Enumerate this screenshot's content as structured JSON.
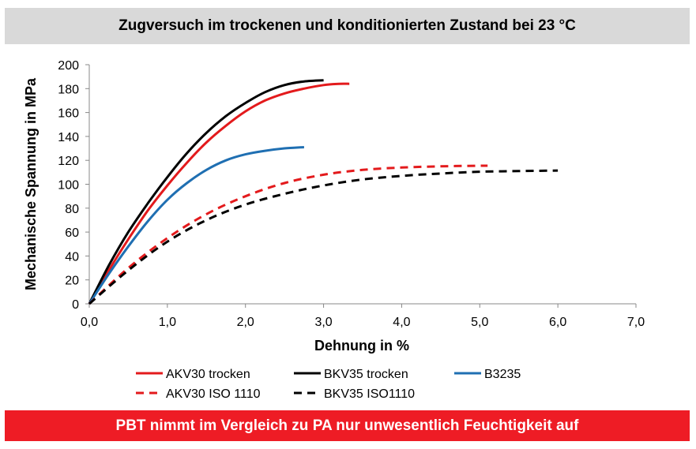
{
  "header": {
    "title": "Zugversuch im trockenen und konditionierten Zustand bei 23 °C"
  },
  "footer": {
    "text": "PBT nimmt im Vergleich zu PA nur unwesentlich Feuchtigkeit auf"
  },
  "chart_data": {
    "type": "line",
    "title": "Zugversuch im trockenen und konditionierten Zustand bei 23 °C",
    "xlabel": "Dehnung in %",
    "ylabel": "Mechanische Spannung in MPa",
    "xlim": [
      0,
      7
    ],
    "ylim": [
      0,
      200
    ],
    "x_ticks": [
      0,
      1,
      2,
      3,
      4,
      5,
      6,
      7
    ],
    "x_tick_labels": [
      "0,0",
      "1,0",
      "2,0",
      "3,0",
      "4,0",
      "5,0",
      "6,0",
      "7,0"
    ],
    "y_ticks": [
      0,
      20,
      40,
      60,
      80,
      100,
      120,
      140,
      160,
      180,
      200
    ],
    "y_tick_labels": [
      "0",
      "20",
      "40",
      "60",
      "80",
      "100",
      "120",
      "140",
      "160",
      "180",
      "200"
    ],
    "grid": false,
    "legend_position": "bottom",
    "series": [
      {
        "name": "AKV30 trocken",
        "color": "#e31a1c",
        "dash": "solid",
        "x": [
          0,
          0.25,
          0.5,
          0.75,
          1.0,
          1.25,
          1.5,
          1.75,
          2.0,
          2.25,
          2.5,
          2.75,
          3.0,
          3.2,
          3.33
        ],
        "y": [
          0,
          28,
          54,
          78,
          99,
          118,
          135,
          149,
          161,
          170,
          176,
          180,
          183,
          184,
          184
        ]
      },
      {
        "name": "BKV35 trocken",
        "color": "#000000",
        "dash": "solid",
        "x": [
          0,
          0.25,
          0.5,
          0.75,
          1.0,
          1.25,
          1.5,
          1.75,
          2.0,
          2.25,
          2.5,
          2.75,
          3.0
        ],
        "y": [
          0,
          32,
          60,
          84,
          106,
          126,
          143,
          157,
          168,
          177,
          183,
          186,
          187
        ]
      },
      {
        "name": "B3235",
        "color": "#1f6fb2",
        "dash": "solid",
        "x": [
          0,
          0.25,
          0.5,
          0.75,
          1.0,
          1.25,
          1.5,
          1.75,
          2.0,
          2.25,
          2.5,
          2.75
        ],
        "y": [
          0,
          25,
          48,
          69,
          87,
          101,
          112,
          120,
          125,
          128,
          130,
          131
        ]
      },
      {
        "name": "AKV30 ISO 1110",
        "color": "#e31a1c",
        "dash": "dashed",
        "x": [
          0,
          0.5,
          1.0,
          1.5,
          2.0,
          2.5,
          3.0,
          3.5,
          4.0,
          4.5,
          5.0,
          5.1
        ],
        "y": [
          0,
          30,
          55,
          75,
          90,
          101,
          108,
          112,
          114,
          115,
          115.5,
          115.5
        ]
      },
      {
        "name": "BKV35 ISO1110",
        "color": "#000000",
        "dash": "dashed",
        "x": [
          0,
          0.5,
          1.0,
          1.5,
          2.0,
          2.5,
          3.0,
          3.5,
          4.0,
          4.5,
          5.0,
          5.5,
          6.0
        ],
        "y": [
          0,
          28,
          52,
          70,
          83,
          92,
          99,
          104,
          107,
          109,
          110.5,
          111,
          111.5
        ]
      }
    ]
  }
}
